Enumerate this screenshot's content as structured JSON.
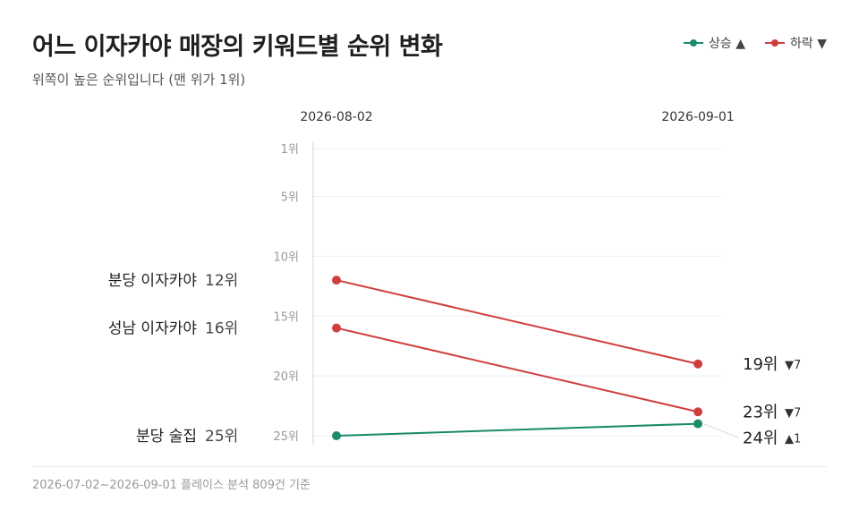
{
  "header": {
    "title": "어느 이자카야 매장의 키워드별 순위 변화",
    "subtitle": "위쪽이 높은 순위입니다 (맨 위가 1위)"
  },
  "legend": [
    {
      "label": "상승 ▲",
      "color": "#1a8a6a"
    },
    {
      "label": "하락 ▼",
      "color": "#cf3e3e"
    }
  ],
  "footer": {
    "text": "2026-07-02~2026-09-01 플레이스 분석 809건 기준"
  },
  "chart_data": {
    "type": "line",
    "x": [
      "2026-08-02",
      "2026-09-01"
    ],
    "ylim": [
      1,
      25
    ],
    "y_inverted": true,
    "y_ticks": [
      1,
      5,
      10,
      15,
      20,
      25
    ],
    "y_tick_labels": [
      "1위",
      "5위",
      "10위",
      "15위",
      "20위",
      "25위"
    ],
    "colors": {
      "up": "#1a8a6a",
      "down": "#cf3e3e"
    },
    "series": [
      {
        "name": "분당 이자카야",
        "values": [
          12,
          19
        ],
        "start_label": "12위",
        "end_label": "19위",
        "change_label": "▼7",
        "direction": "down"
      },
      {
        "name": "성남 이자카야",
        "values": [
          16,
          23
        ],
        "start_label": "16위",
        "end_label": "23위",
        "change_label": "▼7",
        "direction": "down"
      },
      {
        "name": "분당 술집",
        "values": [
          25,
          24
        ],
        "start_label": "25위",
        "end_label": "24위",
        "change_label": "▲1",
        "direction": "up"
      }
    ]
  }
}
